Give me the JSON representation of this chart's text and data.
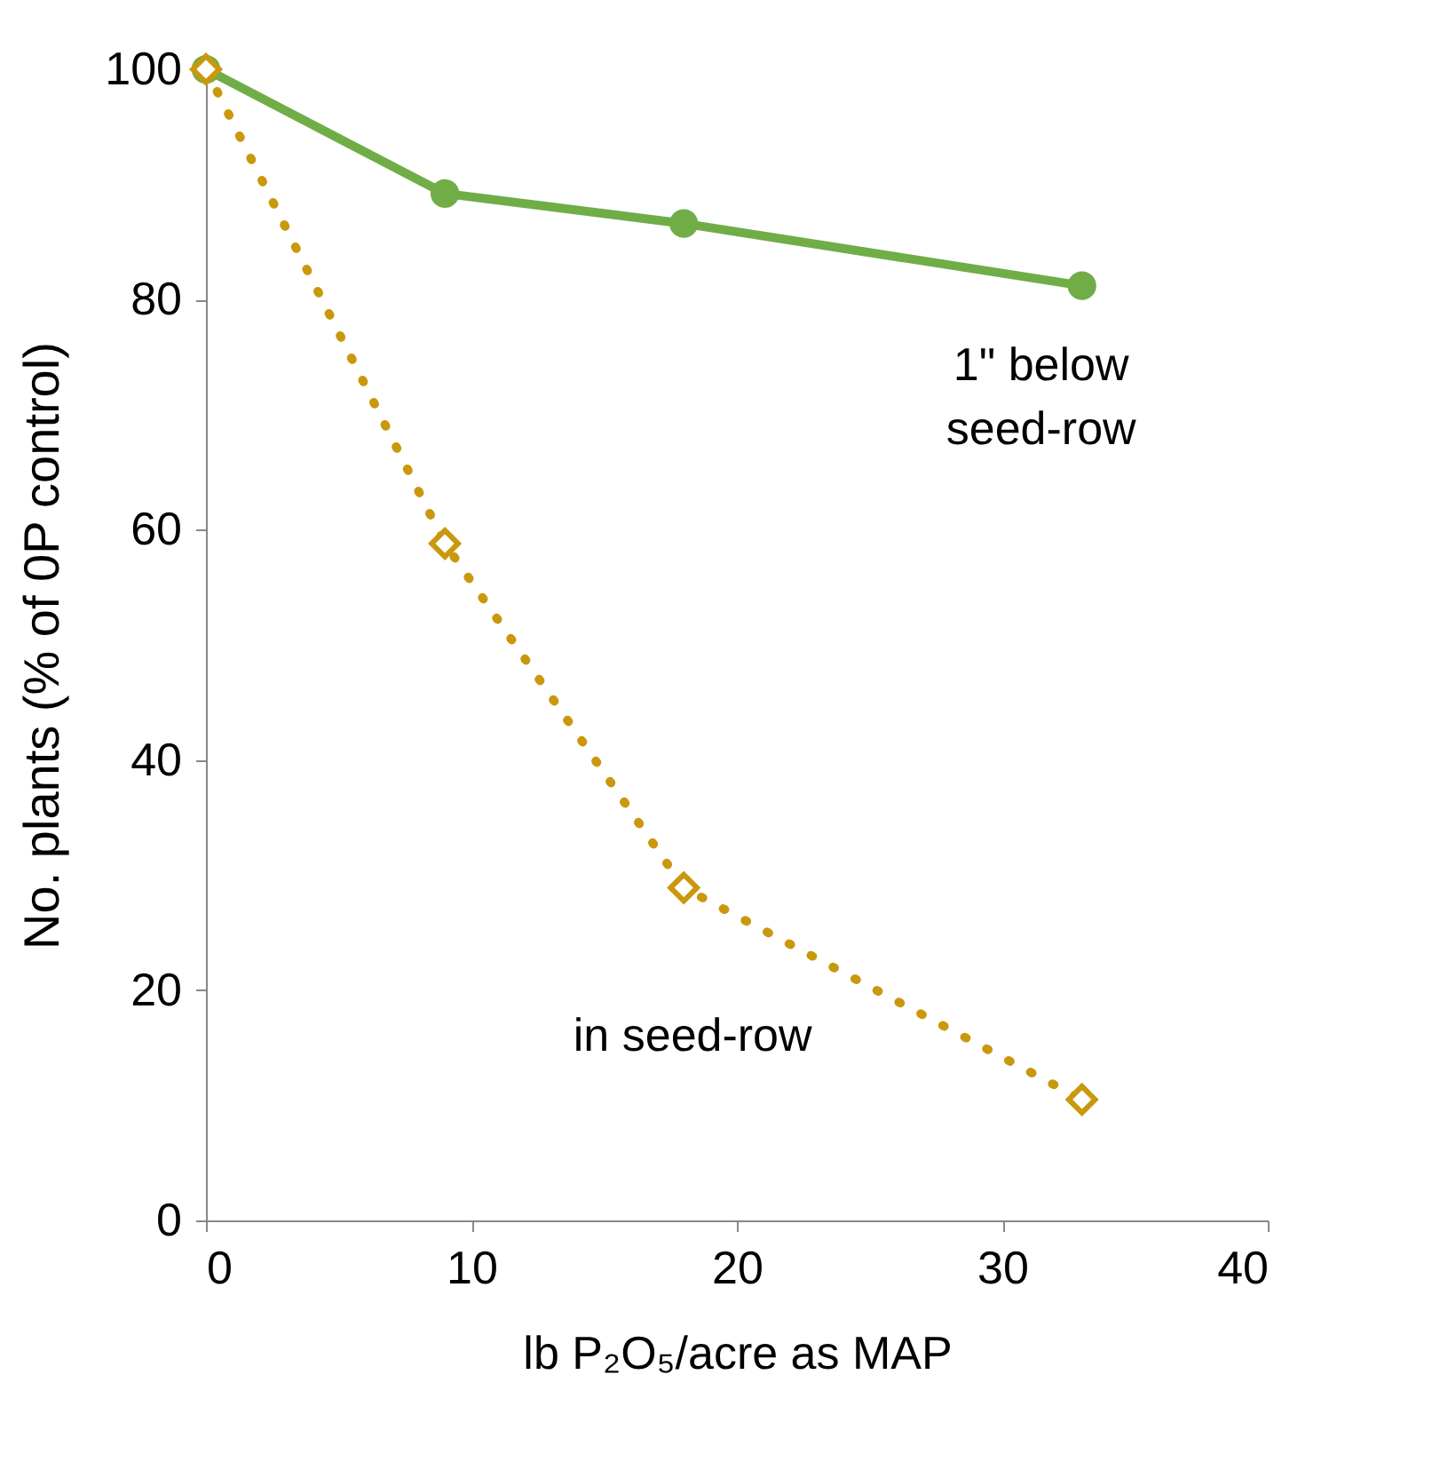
{
  "chart_data": {
    "type": "line",
    "xlabel": "lb P₂O₅/acre as MAP",
    "ylabel": "No. plants (% of 0P control)",
    "x": [
      0,
      9,
      18,
      33
    ],
    "series": [
      {
        "name": "1\" below seed-row",
        "color": "#70ad47",
        "values": [
          100,
          89.2,
          86.6,
          81.2
        ],
        "marker": "circle",
        "line_style": "solid"
      },
      {
        "name": "in seed-row",
        "color": "#c9980c",
        "values": [
          100,
          58.8,
          28.9,
          10.5
        ],
        "marker": "diamond",
        "line_style": "dotted"
      }
    ],
    "xlim": [
      0,
      40
    ],
    "xticks": [
      0,
      10,
      20,
      30,
      40
    ],
    "ylim": [
      0,
      100
    ],
    "yticks": [
      0,
      20,
      40,
      60,
      80,
      100
    ],
    "grid": false,
    "legend": false
  }
}
